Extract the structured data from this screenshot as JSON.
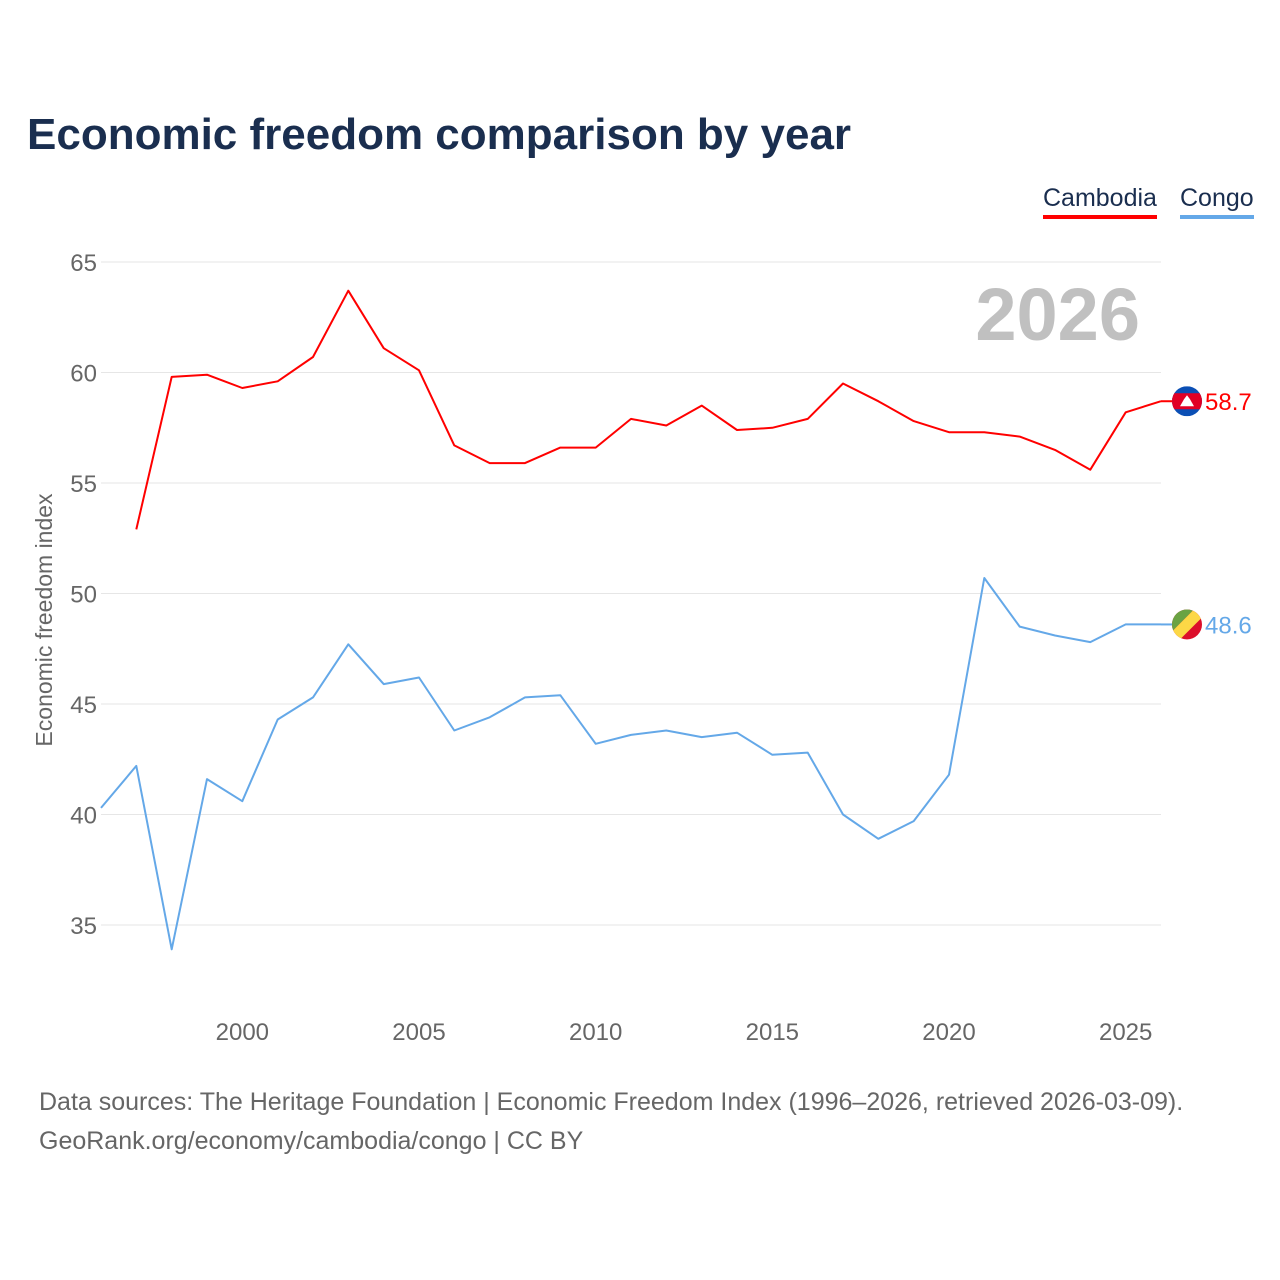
{
  "chart_data": {
    "type": "line",
    "title": "Economic freedom comparison by year",
    "xlabel": "",
    "ylabel": "Economic freedom index",
    "xlim": [
      1996,
      2026
    ],
    "ylim": [
      35,
      65
    ],
    "yticks": [
      35,
      40,
      45,
      50,
      55,
      60,
      65
    ],
    "xticks": [
      2000,
      2005,
      2010,
      2015,
      2020,
      2025
    ],
    "grid": true,
    "legend_placement": "top-right",
    "year_label": "2026",
    "series": [
      {
        "name": "Cambodia",
        "color": "#ff0000",
        "end_label": "58.7",
        "x": [
          1997,
          1998,
          1999,
          2000,
          2001,
          2002,
          2003,
          2004,
          2005,
          2006,
          2007,
          2008,
          2009,
          2010,
          2011,
          2012,
          2013,
          2014,
          2015,
          2016,
          2017,
          2018,
          2019,
          2020,
          2021,
          2022,
          2023,
          2024,
          2025,
          2026
        ],
        "values": [
          52.9,
          59.8,
          59.9,
          59.3,
          59.6,
          60.7,
          63.7,
          61.1,
          60.1,
          56.7,
          55.9,
          55.9,
          56.6,
          56.6,
          57.9,
          57.6,
          58.5,
          57.4,
          57.5,
          57.9,
          59.5,
          58.7,
          57.8,
          57.3,
          57.3,
          57.1,
          56.5,
          55.6,
          58.2,
          58.7
        ]
      },
      {
        "name": "Congo",
        "color": "#64a8e8",
        "end_label": "48.6",
        "x": [
          1996,
          1997,
          1998,
          1999,
          2000,
          2001,
          2002,
          2003,
          2004,
          2005,
          2006,
          2007,
          2008,
          2009,
          2010,
          2011,
          2012,
          2013,
          2014,
          2015,
          2016,
          2017,
          2018,
          2019,
          2020,
          2021,
          2022,
          2023,
          2024,
          2025,
          2026
        ],
        "values": [
          40.3,
          42.2,
          33.9,
          41.6,
          40.6,
          44.3,
          45.3,
          47.7,
          45.9,
          46.2,
          43.8,
          44.4,
          45.3,
          45.4,
          43.2,
          43.6,
          43.8,
          43.5,
          43.7,
          42.7,
          42.8,
          40.0,
          38.9,
          39.7,
          41.8,
          50.7,
          48.5,
          48.1,
          47.8,
          48.6,
          48.6
        ]
      }
    ]
  },
  "footer": {
    "source_line": "Data sources: The Heritage Foundation | Economic Freedom Index (1996–2026, retrieved 2026-03-09).",
    "url_line": "GeoRank.org/economy/cambodia/congo | CC BY"
  }
}
